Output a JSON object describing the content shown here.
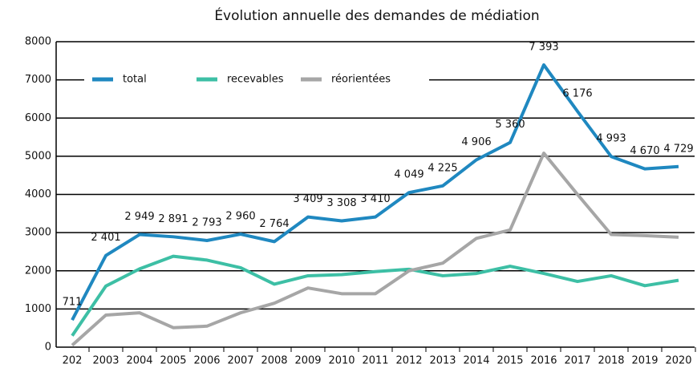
{
  "chart_data": {
    "type": "line",
    "title": "Évolution annuelle des demandes de médiation",
    "categories": [
      "202",
      "2003",
      "2004",
      "2005",
      "2006",
      "2007",
      "2008",
      "2009",
      "2010",
      "2011",
      "2012",
      "2013",
      "2014",
      "2015",
      "2016",
      "2017",
      "2018",
      "2019",
      "2020"
    ],
    "series": [
      {
        "name": "total",
        "color": "#1f88c0",
        "values": [
          711,
          2401,
          2949,
          2891,
          2793,
          2960,
          2764,
          3409,
          3308,
          3410,
          4049,
          4225,
          4906,
          5360,
          7393,
          6176,
          4993,
          4670,
          4729
        ],
        "value_labels": [
          "711",
          "2 401",
          "2 949",
          "2 891",
          "2 793",
          "2 960",
          "2 764",
          "3 409",
          "3 308",
          "3 410",
          "4 049",
          "4 225",
          "4 906",
          "5 360",
          "7 393",
          "6 176",
          "4 993",
          "4 670",
          "4 729"
        ]
      },
      {
        "name": "recevables",
        "color": "#3dbfa5",
        "values": [
          300,
          1600,
          2050,
          2380,
          2280,
          2080,
          1650,
          1870,
          1900,
          1980,
          2040,
          1870,
          1930,
          2120,
          1930,
          1720,
          1870,
          1610,
          1750
        ]
      },
      {
        "name": "réorientées",
        "color": "#a6a6a6",
        "values": [
          50,
          840,
          900,
          510,
          550,
          900,
          1150,
          1550,
          1400,
          1400,
          2000,
          2200,
          2850,
          3070,
          5080,
          4000,
          2950,
          2920,
          2880
        ]
      }
    ],
    "ylim": [
      0,
      8000
    ],
    "yticks": [
      0,
      1000,
      2000,
      3000,
      4000,
      5000,
      6000,
      7000,
      8000
    ],
    "grid": true,
    "legend": "top-left"
  }
}
